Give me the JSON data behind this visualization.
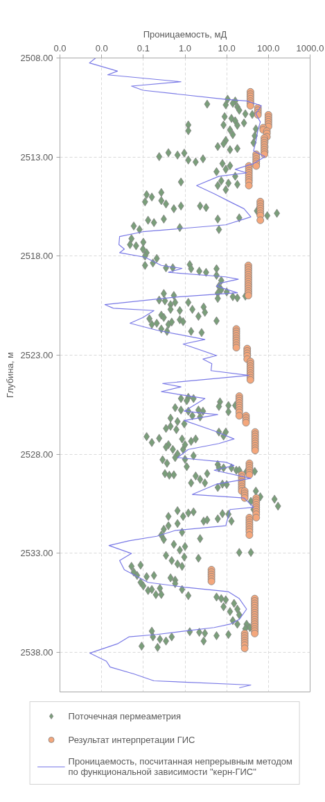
{
  "chart_data": {
    "type": "scatter",
    "xlabel": "Проницаемость, мД",
    "ylabel": "Глубина, м",
    "log": "x",
    "grid": true,
    "legend": "bottom",
    "xlim": [
      0.001,
      1000
    ],
    "ylim": [
      2540,
      2508
    ],
    "xticks": [
      {
        "value": 0.001,
        "label": "0.0"
      },
      {
        "value": 0.01,
        "label": "0.0"
      },
      {
        "value": 0.1,
        "label": "0.1"
      },
      {
        "value": 1,
        "label": "1.0"
      },
      {
        "value": 10,
        "label": "10.0"
      },
      {
        "value": 100,
        "label": "100.0"
      },
      {
        "value": 1000,
        "label": "1000.0"
      }
    ],
    "yticks": [
      {
        "value": 2508,
        "label": "2508.00"
      },
      {
        "value": 2513,
        "label": "2513.00"
      },
      {
        "value": 2518,
        "label": "2518.00"
      },
      {
        "value": 2523,
        "label": "2523.00"
      },
      {
        "value": 2528,
        "label": "2528.00"
      },
      {
        "value": 2533,
        "label": "2533.00"
      },
      {
        "value": 2538,
        "label": "2538.00"
      }
    ],
    "series": [
      {
        "name": "Поточечная пермеаметрия",
        "color": "#7a9e7a",
        "marker": "diamond",
        "x": [
          10.5,
          16,
          14,
          3.4,
          9.5,
          18,
          20,
          28,
          41,
          8.9,
          13,
          16,
          8.4,
          26,
          1.2,
          1.2,
          12,
          18,
          50,
          14,
          47,
          9.5,
          8.4,
          6.1,
          18,
          12,
          44,
          0.24,
          0.4,
          0.66,
          0.96,
          1.2,
          1.8,
          2.7,
          7.9,
          12,
          5.7,
          9.5,
          16,
          7.4,
          6.1,
          11,
          18,
          9.5,
          0.8,
          0.12,
          0.16,
          0.27,
          0.11,
          0.27,
          0.35,
          0.8,
          0.54,
          2.3,
          3.2,
          6.1,
          20,
          53,
          94,
          160,
          0.13,
          0.31,
          0.059,
          0.081,
          0.18,
          0.75,
          6.5,
          0.052,
          0.048,
          0.067,
          0.1,
          0.098,
          0.12,
          0.11,
          0.21,
          0.17,
          0.11,
          0.35,
          0.51,
          1.3,
          1.4,
          2.2,
          3.2,
          5.7,
          5.7,
          7.4,
          6.5,
          7.4,
          10,
          6.1,
          6.1,
          14,
          18,
          28,
          0.31,
          0.54,
          0.24,
          0.33,
          0.45,
          0.58,
          1.2,
          0.45,
          0.75,
          1.5,
          2.8,
          3.0,
          2.1,
          0.14,
          0.16,
          0.21,
          0.27,
          0.31,
          0.27,
          0.37,
          0.4,
          0.48,
          0.75,
          0.9,
          1.4,
          2.5,
          5.7,
          0.8,
          1.2,
          1.6,
          1.1,
          0.58,
          0.8,
          1.2,
          2.1,
          2.7,
          1.5,
          2.3,
          0.45,
          0.66,
          0.96,
          0.35,
          0.45,
          0.62,
          6.9,
          6.5,
          11,
          11,
          16,
          6.5,
          9.5,
          8.4,
          0.12,
          0.16,
          0.24,
          0.85,
          1.4,
          1.8,
          0.4,
          0.35,
          0.51,
          0.66,
          0.58,
          0.9,
          1.0,
          0.29,
          0.37,
          1.6,
          1.0,
          1.1,
          0.33,
          0.42,
          0.54,
          6.1,
          6.5,
          8.4,
          13,
          17,
          20,
          30,
          47,
          1.8,
          2.3,
          3.0,
          1.4,
          3.4,
          6.1,
          7.9,
          10,
          50,
          64,
          38,
          44,
          140,
          170,
          0.4,
          0.66,
          0.9,
          1.2,
          1.6,
          0.66,
          0.4,
          0.31,
          0.27,
          0.85,
          2.8,
          3.4,
          6.1,
          7.9,
          11,
          13,
          0.31,
          0.54,
          0.75,
          1.0,
          0.35,
          0.48,
          0.66,
          0.85,
          0.96,
          2.1,
          2.3,
          0.052,
          0.086,
          0.059,
          0.071,
          0.12,
          0.18,
          0.086,
          0.1,
          0.13,
          0.16,
          0.25,
          0.2,
          0.27,
          0.45,
          0.58,
          0.58,
          0.85,
          1.2,
          5.7,
          7.4,
          9.5,
          15,
          8.4,
          12,
          18,
          20,
          14,
          18,
          30,
          28,
          36,
          0.16,
          0.17,
          0.25,
          0.35,
          0.48,
          1.3,
          2.2,
          3.0,
          5.7,
          11,
          2.8,
          0.091,
          0.22,
          20,
          38
        ],
        "values": [
          2510.08,
          2510.17,
          2510.29,
          2510.33,
          2510.37,
          2510.47,
          2510.64,
          2510.82,
          2510.85,
          2510.96,
          2511.05,
          2511.17,
          2511.38,
          2511.28,
          2511.38,
          2511.67,
          2511.63,
          2511.4,
          2511.58,
          2511.87,
          2511.93,
          2512.16,
          2512.33,
          2512.47,
          2512.57,
          2512.63,
          2512.28,
          2512.98,
          2512.78,
          2512.9,
          2512.8,
          2513.15,
          2513.25,
          2513.09,
          2513.33,
          2513.44,
          2513.74,
          2513.62,
          2513.97,
          2514.2,
          2514.44,
          2514.32,
          2514.38,
          2514.65,
          2514.26,
          2514.9,
          2515.02,
          2514.79,
          2515.26,
          2515.2,
          2515.37,
          2515.47,
          2515.61,
          2515.47,
          2515.55,
          2516.13,
          2516.07,
          2515.72,
          2515.96,
          2515.84,
          2516.19,
          2516.13,
          2516.48,
          2516.66,
          2516.31,
          2516.56,
          2516.66,
          2517.12,
          2517.42,
          2517.48,
          2517.3,
          2517.65,
          2517.83,
          2518.0,
          2518.12,
          2518.35,
          2518.47,
          2518.59,
          2518.59,
          2518.43,
          2518.64,
          2518.76,
          2518.82,
          2518.64,
          2518.97,
          2519.23,
          2519.52,
          2519.7,
          2519.81,
          2519.87,
          2520.14,
          2520.05,
          2520.11,
          2520.02,
          2519.89,
          2519.99,
          2520.22,
          2520.26,
          2520.45,
          2520.34,
          2520.34,
          2520.69,
          2520.75,
          2520.69,
          2520.57,
          2520.84,
          2521.04,
          2521.16,
          2521.45,
          2521.39,
          2520.98,
          2521.1,
          2521.68,
          2521.8,
          2521.45,
          2521.33,
          2521.21,
          2521.31,
          2521.8,
          2521.86,
          2521.27,
          2525.19,
          2525.13,
          2525.19,
          2525.3,
          2525.65,
          2525.77,
          2525.83,
          2525.77,
          2525.83,
          2526.06,
          2526.12,
          2526.18,
          2526.35,
          2526.47,
          2526.7,
          2526.59,
          2526.76,
          2525.36,
          2525.59,
          2525.54,
          2525.86,
          2525.54,
          2526.88,
          2526.88,
          2527.08,
          2527.11,
          2527.41,
          2527.2,
          2527.23,
          2527.35,
          2527.23,
          2527.52,
          2527.64,
          2527.76,
          2527.99,
          2528.17,
          2527.76,
          2527.52,
          2528.28,
          2528.46,
          2528.08,
          2528.26,
          2528.63,
          2528.98,
          2529.06,
          2529.04,
          2528.52,
          2528.69,
          2528.69,
          2528.69,
          2528.81,
          2528.81,
          2528.87,
          2528.87,
          2529.1,
          2529.27,
          2529.45,
          2529.45,
          2528.98,
          2529.68,
          2529.51,
          2529.53,
          2529.86,
          2530.15,
          2530.38,
          2530.79,
          2530.27,
          2530.62,
          2531.14,
          2530.85,
          2531.14,
          2530.97,
          2530.91,
          2531.5,
          2531.61,
          2531.79,
          2532.08,
          2531.94,
          2531.38,
          2531.32,
          2531.26,
          2531.0,
          2531.03,
          2531.38,
          2532.31,
          2532.55,
          2532.84,
          2532.66,
          2533.11,
          2533.37,
          2533.54,
          2533.66,
          2533.19,
          2533.25,
          2532.26,
          2533.66,
          2533.6,
          2533.95,
          2534.12,
          2534.18,
          2534.12,
          2534.47,
          2534.65,
          2534.88,
          2534.83,
          2534.77,
          2535.09,
          2535.08,
          2534.24,
          2534.36,
          2534.53,
          2534.83,
          2535.14,
          2535.21,
          2535.29,
          2535.35,
          2535.53,
          2535.7,
          2535.94,
          2535.82,
          2536.11,
          2536.4,
          2536.58,
          2536.58,
          2536.81,
          2536.75,
          2536.93,
          2537.22,
          2537.34,
          2537.43,
          2537.22,
          2536.96,
          2536.99,
          2537.04,
          2537.16,
          2537.1,
          2537.43,
          2537.69,
          2537.75,
          2532.96,
          2532.96
        ]
      },
      {
        "name": "Результат интерпретации ГИС",
        "color": "#f4a77c",
        "marker": "circle",
        "x": [
          37,
          37,
          37,
          37,
          37,
          37,
          37,
          56,
          56,
          56,
          56,
          100,
          100,
          100,
          100,
          100,
          100,
          75,
          75,
          92,
          92,
          92,
          80,
          80,
          80,
          80,
          80,
          80,
          80,
          80,
          51,
          51,
          51,
          51,
          51,
          51,
          34,
          34,
          34,
          34,
          34,
          34,
          34,
          34,
          34,
          64,
          64,
          64,
          64,
          64,
          64,
          64,
          64,
          33,
          33,
          33,
          33,
          33,
          33,
          33,
          33,
          33,
          33,
          33,
          33,
          33,
          33,
          17,
          17,
          17,
          17,
          17,
          17,
          17,
          17,
          17,
          31,
          31,
          31,
          31,
          31,
          37,
          37,
          37,
          37,
          37,
          37,
          37,
          37,
          37,
          20,
          20,
          20,
          20,
          20,
          20,
          20,
          20,
          20,
          29,
          29,
          29,
          29,
          48,
          48,
          48,
          48,
          48,
          48,
          48,
          48,
          48,
          35,
          35,
          35,
          35,
          35,
          35,
          23,
          23,
          23,
          23,
          23,
          23,
          23,
          23,
          27,
          27,
          27,
          27,
          51,
          51,
          51,
          51,
          51,
          51,
          51,
          51,
          51,
          35,
          35,
          35,
          35,
          35,
          35,
          35,
          35,
          4.3,
          4.3,
          4.3,
          4.3,
          4.3,
          4.3,
          47,
          47,
          47,
          47,
          47,
          47,
          47,
          47,
          47,
          47,
          47,
          47,
          47,
          47,
          47,
          47,
          27,
          27,
          27,
          27,
          27,
          27,
          27
        ],
        "values": [
          2509.71,
          2509.83,
          2509.94,
          2510.06,
          2510.18,
          2510.29,
          2510.41,
          2510.52,
          2510.64,
          2510.76,
          2510.87,
          2510.87,
          2510.99,
          2511.11,
          2511.22,
          2511.34,
          2511.46,
          2511.52,
          2511.63,
          2511.69,
          2511.81,
          2511.98,
          2512.04,
          2512.16,
          2512.28,
          2512.39,
          2512.51,
          2512.63,
          2512.75,
          2512.86,
          2512.86,
          2512.98,
          2513.1,
          2513.22,
          2513.33,
          2513.45,
          2513.45,
          2513.57,
          2513.69,
          2513.8,
          2513.92,
          2514.04,
          2514.16,
          2514.27,
          2514.44,
          2515.25,
          2515.37,
          2515.49,
          2515.6,
          2515.72,
          2515.84,
          2515.95,
          2516.19,
          2518.47,
          2518.59,
          2518.7,
          2518.82,
          2518.94,
          2519.06,
          2519.17,
          2519.29,
          2519.41,
          2519.52,
          2519.64,
          2519.76,
          2519.87,
          2519.99,
          2521.68,
          2521.8,
          2521.91,
          2522.03,
          2522.15,
          2522.26,
          2522.38,
          2522.5,
          2522.62,
          2522.67,
          2522.79,
          2522.91,
          2523.03,
          2523.2,
          2523.32,
          2523.44,
          2523.56,
          2523.67,
          2523.79,
          2523.91,
          2524.02,
          2524.14,
          2524.25,
          2525.07,
          2525.19,
          2525.3,
          2525.42,
          2525.54,
          2525.65,
          2525.77,
          2525.89,
          2526.06,
          2526.06,
          2526.18,
          2526.3,
          2526.41,
          2526.88,
          2527.0,
          2527.11,
          2527.23,
          2527.35,
          2527.46,
          2527.58,
          2527.7,
          2527.81,
          2528.46,
          2528.58,
          2528.69,
          2528.81,
          2528.93,
          2529.04,
          2529.04,
          2529.16,
          2529.28,
          2529.39,
          2529.51,
          2529.63,
          2529.74,
          2529.86,
          2529.86,
          2529.98,
          2530.09,
          2530.21,
          2530.21,
          2530.33,
          2530.44,
          2530.56,
          2530.68,
          2530.79,
          2530.91,
          2531.03,
          2531.2,
          2531.2,
          2531.32,
          2531.44,
          2531.55,
          2531.67,
          2531.79,
          2531.91,
          2532.08,
          2533.83,
          2533.95,
          2534.07,
          2534.18,
          2534.3,
          2534.42,
          2535.29,
          2535.41,
          2535.53,
          2535.64,
          2535.76,
          2535.88,
          2536.0,
          2536.11,
          2536.23,
          2536.35,
          2536.47,
          2536.58,
          2536.7,
          2536.82,
          2536.93,
          2537.05,
          2537.05,
          2537.17,
          2537.29,
          2537.41,
          2537.52,
          2537.64,
          2537.8
        ]
      },
      {
        "type": "line",
        "name": "Проницаемость, посчитанная непрерывным методом по функциональной зависимости \"керн-ГИС\"",
        "color": "#7878e6",
        "marker": "none",
        "line_style": "solid",
        "x": [
          0.0072,
          0.0051,
          0.024,
          0.014,
          0.8,
          0.052,
          0.098,
          9.5,
          30,
          68,
          50,
          64,
          56,
          50,
          44,
          83,
          44,
          16,
          30,
          6.5,
          1.9,
          5.0,
          12,
          26,
          38,
          9.5,
          0.098,
          0.027,
          0.026,
          0.035,
          0.027,
          0.11,
          0.27,
          0.85,
          0.4,
          9.5,
          19,
          7.4,
          5.7,
          18,
          0.75,
          0.012,
          0.019,
          0.18,
          0.098,
          0.048,
          0.21,
          3.0,
          0.9,
          5.7,
          2.7,
          4.4,
          4.2,
          34,
          0.29,
          0.8,
          0.27,
          3.0,
          0.96,
          6.1,
          0.96,
          5.0,
          15,
          6.5,
          1.2,
          0.66,
          9.5,
          15,
          5.0,
          38,
          5.7,
          1.5,
          26,
          44,
          12,
          9.5,
          0.58,
          0.21,
          0.045,
          0.015,
          0.052,
          0.027,
          0.035,
          0.13,
          0.96,
          11,
          20,
          30,
          20,
          12,
          5.0,
          0.96,
          0.21,
          0.045,
          0.024,
          0.0052,
          0.013,
          0.016,
          0.059,
          0.18,
          38,
          20
        ],
        "values": [
          2508.0,
          2508.25,
          2508.66,
          2508.85,
          2509.2,
          2509.42,
          2509.63,
          2510.09,
          2510.17,
          2510.41,
          2510.82,
          2511.23,
          2511.63,
          2512.22,
          2512.69,
          2512.98,
          2513.33,
          2513.62,
          2513.8,
          2513.97,
          2514.44,
          2514.85,
          2515.26,
          2515.61,
          2516.02,
          2516.42,
          2516.77,
          2517.01,
          2517.42,
          2517.65,
          2517.83,
          2518.06,
          2518.47,
          2518.62,
          2518.82,
          2519.05,
          2519.17,
          2519.35,
          2519.52,
          2519.85,
          2520.05,
          2520.45,
          2520.63,
          2520.75,
          2521.1,
          2521.39,
          2521.74,
          2522.21,
          2522.44,
          2523.02,
          2523.2,
          2523.43,
          2523.78,
          2524.02,
          2524.43,
          2524.6,
          2524.84,
          2525.19,
          2525.83,
          2526.0,
          2526.3,
          2526.82,
          2527.23,
          2527.46,
          2527.76,
          2528.17,
          2528.4,
          2528.57,
          2528.81,
          2529.22,
          2529.51,
          2530.03,
          2530.21,
          2530.68,
          2530.79,
          2531.61,
          2531.85,
          2532.14,
          2532.37,
          2532.61,
          2533.01,
          2533.37,
          2533.83,
          2534.47,
          2534.71,
          2534.94,
          2535.29,
          2535.82,
          2536.34,
          2536.58,
          2536.75,
          2536.93,
          2537.1,
          2537.22,
          2537.57,
          2538.04,
          2538.45,
          2538.74,
          2539.09,
          2539.44,
          2539.65,
          2539.79
        ]
      }
    ]
  }
}
